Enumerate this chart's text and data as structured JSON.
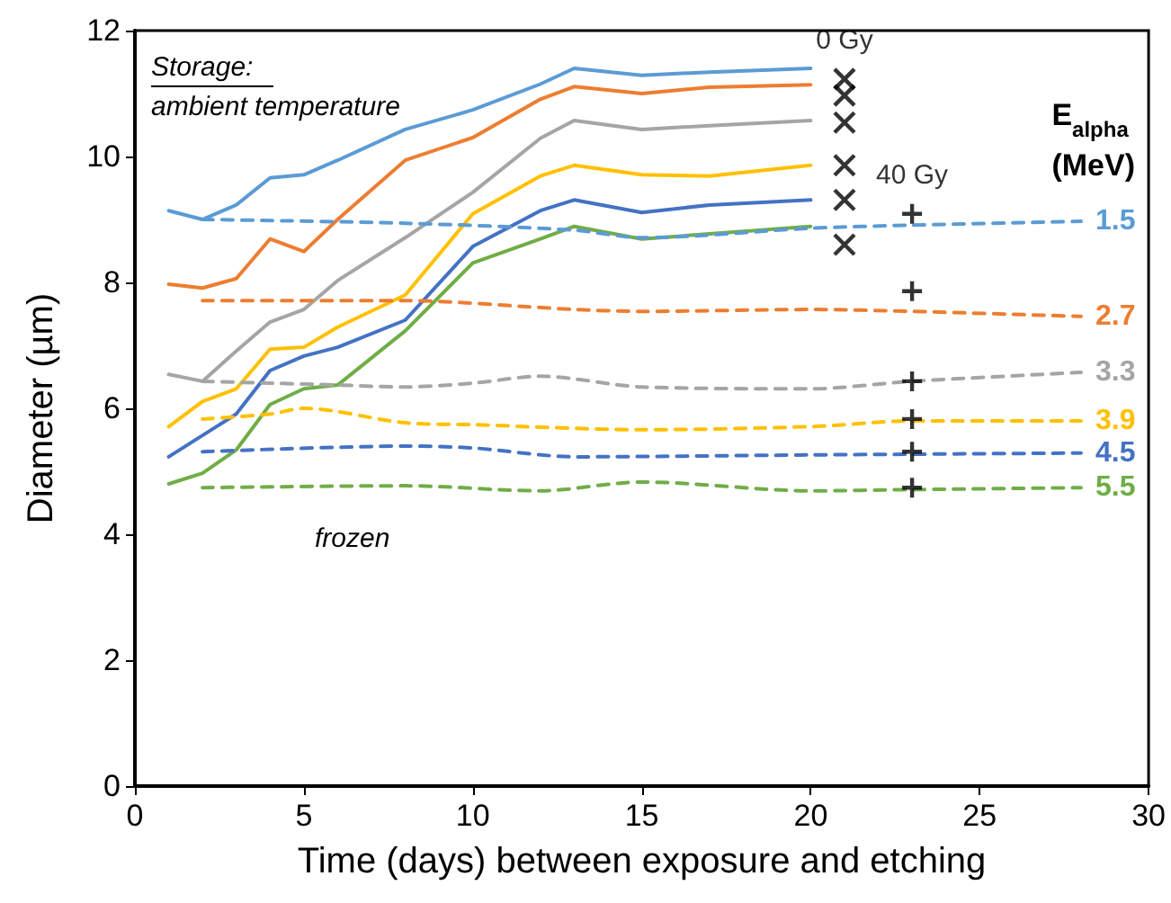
{
  "chart_data": {
    "type": "line",
    "xlabel": "Time (days) between exposure and etching",
    "ylabel": "Diameter (µm)",
    "legend_title": "E$_{alpha}$ (MeV)",
    "annotations": [
      "Storage:",
      "ambient temperature",
      "frozen"
    ],
    "xlim": [
      0,
      30
    ],
    "xticks": [
      0,
      5,
      10,
      15,
      20,
      25,
      30
    ],
    "ylim": [
      0,
      12
    ],
    "yticks": [
      0,
      2,
      4,
      6,
      8,
      10,
      12
    ],
    "grid": false,
    "marker": "none",
    "series": [
      {
        "color": "#5b9bd5",
        "line_style": "solid",
        "x": [
          1,
          2,
          3,
          4,
          5,
          6,
          8,
          10,
          12,
          13,
          15,
          17,
          20
        ],
        "values": [
          9.14,
          9.0,
          9.23,
          9.66,
          9.71,
          9.94,
          10.43,
          10.74,
          11.15,
          11.4,
          11.29,
          11.34,
          11.4
        ]
      },
      {
        "color": "#ed7d31",
        "line_style": "solid",
        "x": [
          1,
          2,
          3,
          4,
          5,
          6,
          8,
          10,
          12,
          13,
          15,
          17,
          20
        ],
        "values": [
          7.97,
          7.91,
          8.06,
          8.69,
          8.49,
          9.0,
          9.94,
          10.3,
          10.91,
          11.11,
          11.0,
          11.1,
          11.14
        ]
      },
      {
        "color": "#a5a5a5",
        "line_style": "solid",
        "x": [
          1,
          2,
          3,
          4,
          5,
          6,
          8,
          10,
          12,
          13,
          15,
          17,
          20
        ],
        "values": [
          6.54,
          6.43,
          6.91,
          7.37,
          7.57,
          8.03,
          8.71,
          9.43,
          10.29,
          10.57,
          10.43,
          10.49,
          10.57
        ]
      },
      {
        "color": "#ffc000",
        "line_style": "solid",
        "x": [
          1,
          2,
          3,
          4,
          5,
          6,
          8,
          10,
          12,
          13,
          15,
          17,
          20
        ],
        "values": [
          5.71,
          6.11,
          6.31,
          6.94,
          6.97,
          7.29,
          7.8,
          9.09,
          9.69,
          9.86,
          9.71,
          9.69,
          9.86
        ]
      },
      {
        "color": "#4472c4",
        "line_style": "solid",
        "x": [
          1,
          2,
          3,
          4,
          5,
          6,
          8,
          10,
          12,
          13,
          15,
          17,
          20
        ],
        "values": [
          5.23,
          5.57,
          5.91,
          6.6,
          6.83,
          6.97,
          7.4,
          8.57,
          9.14,
          9.31,
          9.11,
          9.23,
          9.31
        ]
      },
      {
        "color": "#70ad47",
        "line_style": "solid",
        "x": [
          1,
          2,
          3,
          4,
          5,
          6,
          8,
          10,
          12,
          13,
          15,
          17,
          20
        ],
        "values": [
          4.8,
          4.97,
          5.34,
          6.06,
          6.31,
          6.37,
          7.23,
          8.31,
          8.69,
          8.89,
          8.69,
          8.77,
          8.89
        ]
      },
      {
        "name": "1.5",
        "color": "#5b9bd5",
        "line_style": "dashed",
        "x": [
          2,
          8,
          13,
          15,
          20,
          23,
          28
        ],
        "values": [
          9.0,
          8.94,
          8.83,
          8.71,
          8.86,
          8.91,
          8.97
        ]
      },
      {
        "name": "2.7",
        "color": "#ed7d31",
        "line_style": "dashed",
        "x": [
          2,
          8,
          13,
          15,
          20,
          23,
          28
        ],
        "values": [
          7.71,
          7.71,
          7.57,
          7.54,
          7.57,
          7.54,
          7.46
        ]
      },
      {
        "name": "3.3",
        "color": "#a5a5a5",
        "line_style": "dashed",
        "x": [
          2,
          4,
          6,
          8,
          10,
          12,
          15,
          20,
          23,
          28
        ],
        "values": [
          6.43,
          6.4,
          6.37,
          6.34,
          6.4,
          6.51,
          6.34,
          6.31,
          6.43,
          6.57
        ]
      },
      {
        "name": "3.9",
        "color": "#ffc000",
        "line_style": "dashed",
        "x": [
          2,
          4,
          5,
          8,
          10,
          15,
          20,
          23,
          28
        ],
        "values": [
          5.83,
          5.91,
          6.0,
          5.77,
          5.74,
          5.66,
          5.71,
          5.8,
          5.8
        ]
      },
      {
        "name": "4.5",
        "color": "#4472c4",
        "line_style": "dashed",
        "x": [
          2,
          8,
          10,
          13,
          20,
          28
        ],
        "values": [
          5.31,
          5.4,
          5.37,
          5.23,
          5.26,
          5.29
        ]
      },
      {
        "name": "5.5",
        "color": "#70ad47",
        "line_style": "dashed",
        "x": [
          2,
          8,
          12,
          15,
          20,
          23,
          28
        ],
        "values": [
          4.74,
          4.77,
          4.69,
          4.83,
          4.69,
          4.71,
          4.74
        ]
      },
      {
        "name": "0 Gy",
        "type": "scatter",
        "marker": "x",
        "color": "#000000",
        "x": [
          21,
          21,
          21,
          21,
          21,
          21
        ],
        "values": [
          11.23,
          10.97,
          10.54,
          9.86,
          9.31,
          8.6
        ]
      },
      {
        "name": "40 Gy",
        "type": "scatter",
        "marker": "cross",
        "color": "#000000",
        "x": [
          23,
          23,
          23,
          23,
          23,
          23
        ],
        "values": [
          9.09,
          7.86,
          6.43,
          5.83,
          5.31,
          4.74
        ]
      }
    ]
  }
}
